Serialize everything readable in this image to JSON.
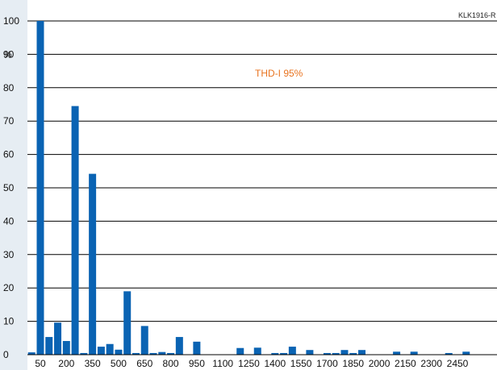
{
  "chart_data": {
    "type": "bar",
    "figure_code": "KLK1916-R",
    "annotation": "THD-I 95%",
    "ylabel": "%",
    "ylim": [
      0,
      100
    ],
    "yticks": [
      0,
      10,
      20,
      30,
      40,
      50,
      60,
      70,
      80,
      90,
      100
    ],
    "xlim": [
      0,
      2500
    ],
    "xticks": [
      50,
      200,
      350,
      500,
      650,
      800,
      950,
      1100,
      1250,
      1400,
      1550,
      1700,
      1850,
      2000,
      2150,
      2300,
      2450
    ],
    "grid": true,
    "legend": "none",
    "bar_color": "#0a63b3",
    "annotation_color": "#e8731f",
    "x": [
      0,
      50,
      100,
      150,
      200,
      250,
      300,
      350,
      400,
      450,
      500,
      550,
      600,
      650,
      700,
      750,
      800,
      850,
      900,
      950,
      1000,
      1050,
      1100,
      1150,
      1200,
      1250,
      1300,
      1350,
      1400,
      1450,
      1500,
      1550,
      1600,
      1650,
      1700,
      1750,
      1800,
      1850,
      1900,
      1950,
      2000,
      2050,
      2100,
      2150,
      2200,
      2250,
      2300,
      2350,
      2400,
      2450,
      2500
    ],
    "values": [
      0.7,
      100,
      5.3,
      9.6,
      4.1,
      74.5,
      0.5,
      54.2,
      2.4,
      3.2,
      1.5,
      19.0,
      0.5,
      8.6,
      0.5,
      0.8,
      0.5,
      5.3,
      0,
      3.9,
      0,
      0,
      0,
      0,
      2.0,
      0,
      2.1,
      0,
      0.5,
      0.5,
      2.4,
      0,
      1.4,
      0,
      0.5,
      0.5,
      1.4,
      0.5,
      1.4,
      0,
      0,
      0,
      0.9,
      0,
      0.9,
      0,
      0,
      0,
      0.5,
      0,
      0.9
    ]
  }
}
